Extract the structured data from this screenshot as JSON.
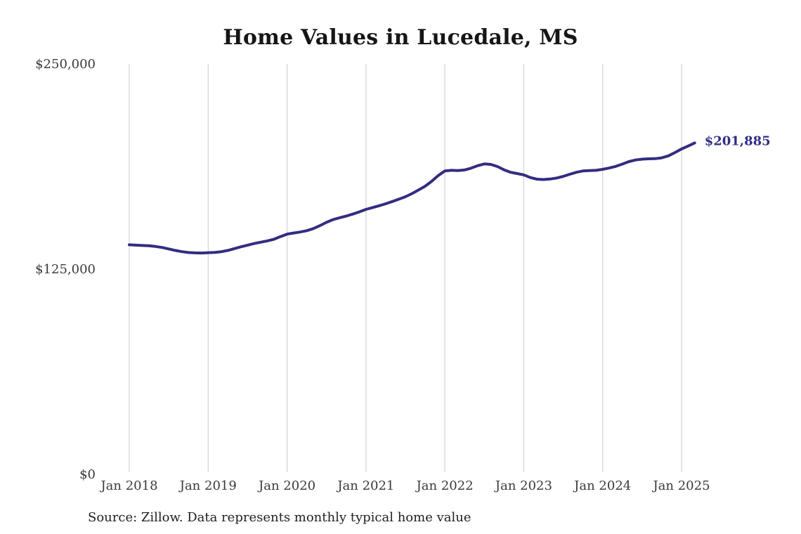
{
  "title": "Home Values in Lucedale, MS",
  "source_note": "Source: Zillow. Data represents monthly typical home value",
  "colors": {
    "line": "#322d80",
    "end_label": "#2f2d85",
    "grid": "#d6d6d6",
    "axis_text": "#3a3a3a",
    "title_text": "#161616"
  },
  "chart_data": {
    "type": "line",
    "title": "Home Values in Lucedale, MS",
    "xlabel": "",
    "ylabel": "",
    "grid": "vertical-only",
    "legend": "none",
    "ylim": [
      0,
      250000
    ],
    "y_ticks": [
      {
        "value": 0,
        "label": "$0"
      },
      {
        "value": 125000,
        "label": "$125,000"
      },
      {
        "value": 250000,
        "label": "$250,000"
      }
    ],
    "x_start_month": "2018-01",
    "x_tick_labels": [
      "Jan 2018",
      "Jan 2019",
      "Jan 2020",
      "Jan 2021",
      "Jan 2022",
      "Jan 2023",
      "Jan 2024",
      "Jan 2025"
    ],
    "x_tick_month_indices": [
      0,
      12,
      24,
      36,
      48,
      60,
      72,
      84
    ],
    "last_value": 201885,
    "last_value_label": "$201,885",
    "series": [
      {
        "name": "Monthly typical home value",
        "values": [
          139800,
          139600,
          139400,
          139200,
          138800,
          138200,
          137300,
          136400,
          135600,
          135100,
          134900,
          134800,
          135000,
          135200,
          135600,
          136400,
          137500,
          138600,
          139600,
          140600,
          141400,
          142200,
          143200,
          144800,
          146300,
          147000,
          147600,
          148400,
          149700,
          151500,
          153500,
          155200,
          156300,
          157300,
          158500,
          159900,
          161400,
          162500,
          163600,
          164800,
          166200,
          167600,
          169100,
          171000,
          173200,
          175500,
          178500,
          182000,
          184800,
          185200,
          185000,
          185400,
          186500,
          188000,
          189100,
          188800,
          187500,
          185500,
          184000,
          183200,
          182400,
          180800,
          179800,
          179600,
          179900,
          180500,
          181500,
          182800,
          184000,
          184800,
          185000,
          185200,
          185800,
          186600,
          187600,
          189000,
          190500,
          191500,
          192000,
          192200,
          192300,
          192800,
          194000,
          196000,
          198200,
          200000,
          201885
        ]
      }
    ]
  }
}
